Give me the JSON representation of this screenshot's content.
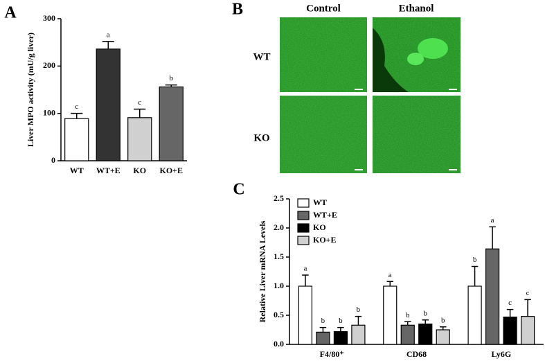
{
  "chart_data": [
    {
      "type": "bar",
      "panel": "A",
      "ylabel": "Liver MPO activity (mU/g liver)",
      "categories": [
        "WT",
        "WT+E",
        "KO",
        "KO+E"
      ],
      "values": [
        89,
        236,
        91,
        156
      ],
      "errors": [
        11,
        16,
        18,
        4
      ],
      "letters": [
        "c",
        "a",
        "c",
        "b"
      ],
      "colors": [
        "#ffffff",
        "#333333",
        "#d0d0d0",
        "#666666"
      ],
      "ylim": [
        0,
        300
      ],
      "yticks": [
        0,
        100,
        200,
        300
      ]
    },
    {
      "type": "bar",
      "panel": "C",
      "ylabel": "Relative  Liver mRNA Levels",
      "categories": [
        "F4/80⁺",
        "CD68",
        "Ly6G"
      ],
      "series": [
        {
          "name": "WT",
          "color": "#ffffff",
          "values": [
            1.0,
            1.0,
            1.0
          ],
          "errors": [
            0.19,
            0.08,
            0.34
          ],
          "letters": [
            "a",
            "a",
            "b"
          ]
        },
        {
          "name": "WT+E",
          "color": "#666666",
          "values": [
            0.21,
            0.33,
            1.64
          ],
          "errors": [
            0.08,
            0.06,
            0.38
          ],
          "letters": [
            "b",
            "b",
            "a"
          ]
        },
        {
          "name": "KO",
          "color": "#000000",
          "values": [
            0.22,
            0.35,
            0.47
          ],
          "errors": [
            0.07,
            0.07,
            0.13
          ],
          "letters": [
            "b",
            "b",
            "c"
          ]
        },
        {
          "name": "KO+E",
          "color": "#d0d0d0",
          "values": [
            0.33,
            0.25,
            0.48
          ],
          "errors": [
            0.15,
            0.05,
            0.29
          ],
          "letters": [
            "b",
            "b",
            "c"
          ]
        }
      ],
      "ylim": [
        0,
        2.5
      ],
      "yticks": [
        {
          "value": 0,
          "label": "0.0"
        },
        0.5,
        {
          "value": 1,
          "label": "1.0"
        },
        1.5,
        {
          "value": 2,
          "label": "2.0"
        },
        2.5
      ]
    }
  ],
  "panel_b": {
    "panel": "B",
    "columns": [
      "Control",
      "Ethanol"
    ],
    "rows": [
      "WT",
      "KO"
    ]
  }
}
